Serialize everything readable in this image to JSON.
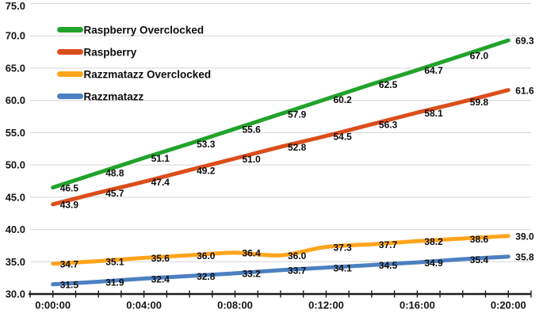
{
  "chart_data": {
    "type": "line",
    "title": "",
    "background": "#FFFFFF",
    "grid": "horizontal",
    "legend_position": "inside-top-left",
    "data_labels": true,
    "x_axis": {
      "tick_labels": [
        "0:00:00",
        "0:04:00",
        "0:08:00",
        "0:12:00",
        "0:16:00",
        "0:20:00"
      ],
      "points_between_labels": 2,
      "minor_ticks_per_point": 2
    },
    "y_axis": {
      "min": 30,
      "max": 75,
      "step": 5,
      "tick_labels": [
        "30.0",
        "35.0",
        "40.0",
        "45.0",
        "50.0",
        "55.0",
        "60.0",
        "65.0",
        "70.0",
        "75.0"
      ]
    },
    "series": [
      {
        "name": "Raspberry Overclocked",
        "color": "#21A32B",
        "values": [
          46.5,
          48.8,
          51.1,
          53.3,
          55.6,
          57.9,
          60.2,
          62.5,
          64.7,
          67.0,
          69.3
        ]
      },
      {
        "name": "Raspberry",
        "color": "#DB4E1A",
        "values": [
          43.9,
          45.7,
          47.4,
          49.2,
          51.0,
          52.8,
          54.5,
          56.3,
          58.1,
          59.8,
          61.6
        ]
      },
      {
        "name": "Razzmatazz Overclocked",
        "color": "#FFA41C",
        "values": [
          34.7,
          35.1,
          35.6,
          36.0,
          36.4,
          36.0,
          37.3,
          37.7,
          38.2,
          38.6,
          39.0
        ]
      },
      {
        "name": "Razzmatazz",
        "color": "#4C80C2",
        "values": [
          31.5,
          31.9,
          32.4,
          32.8,
          33.2,
          33.7,
          34.1,
          34.5,
          34.9,
          35.4,
          35.8
        ]
      }
    ]
  }
}
